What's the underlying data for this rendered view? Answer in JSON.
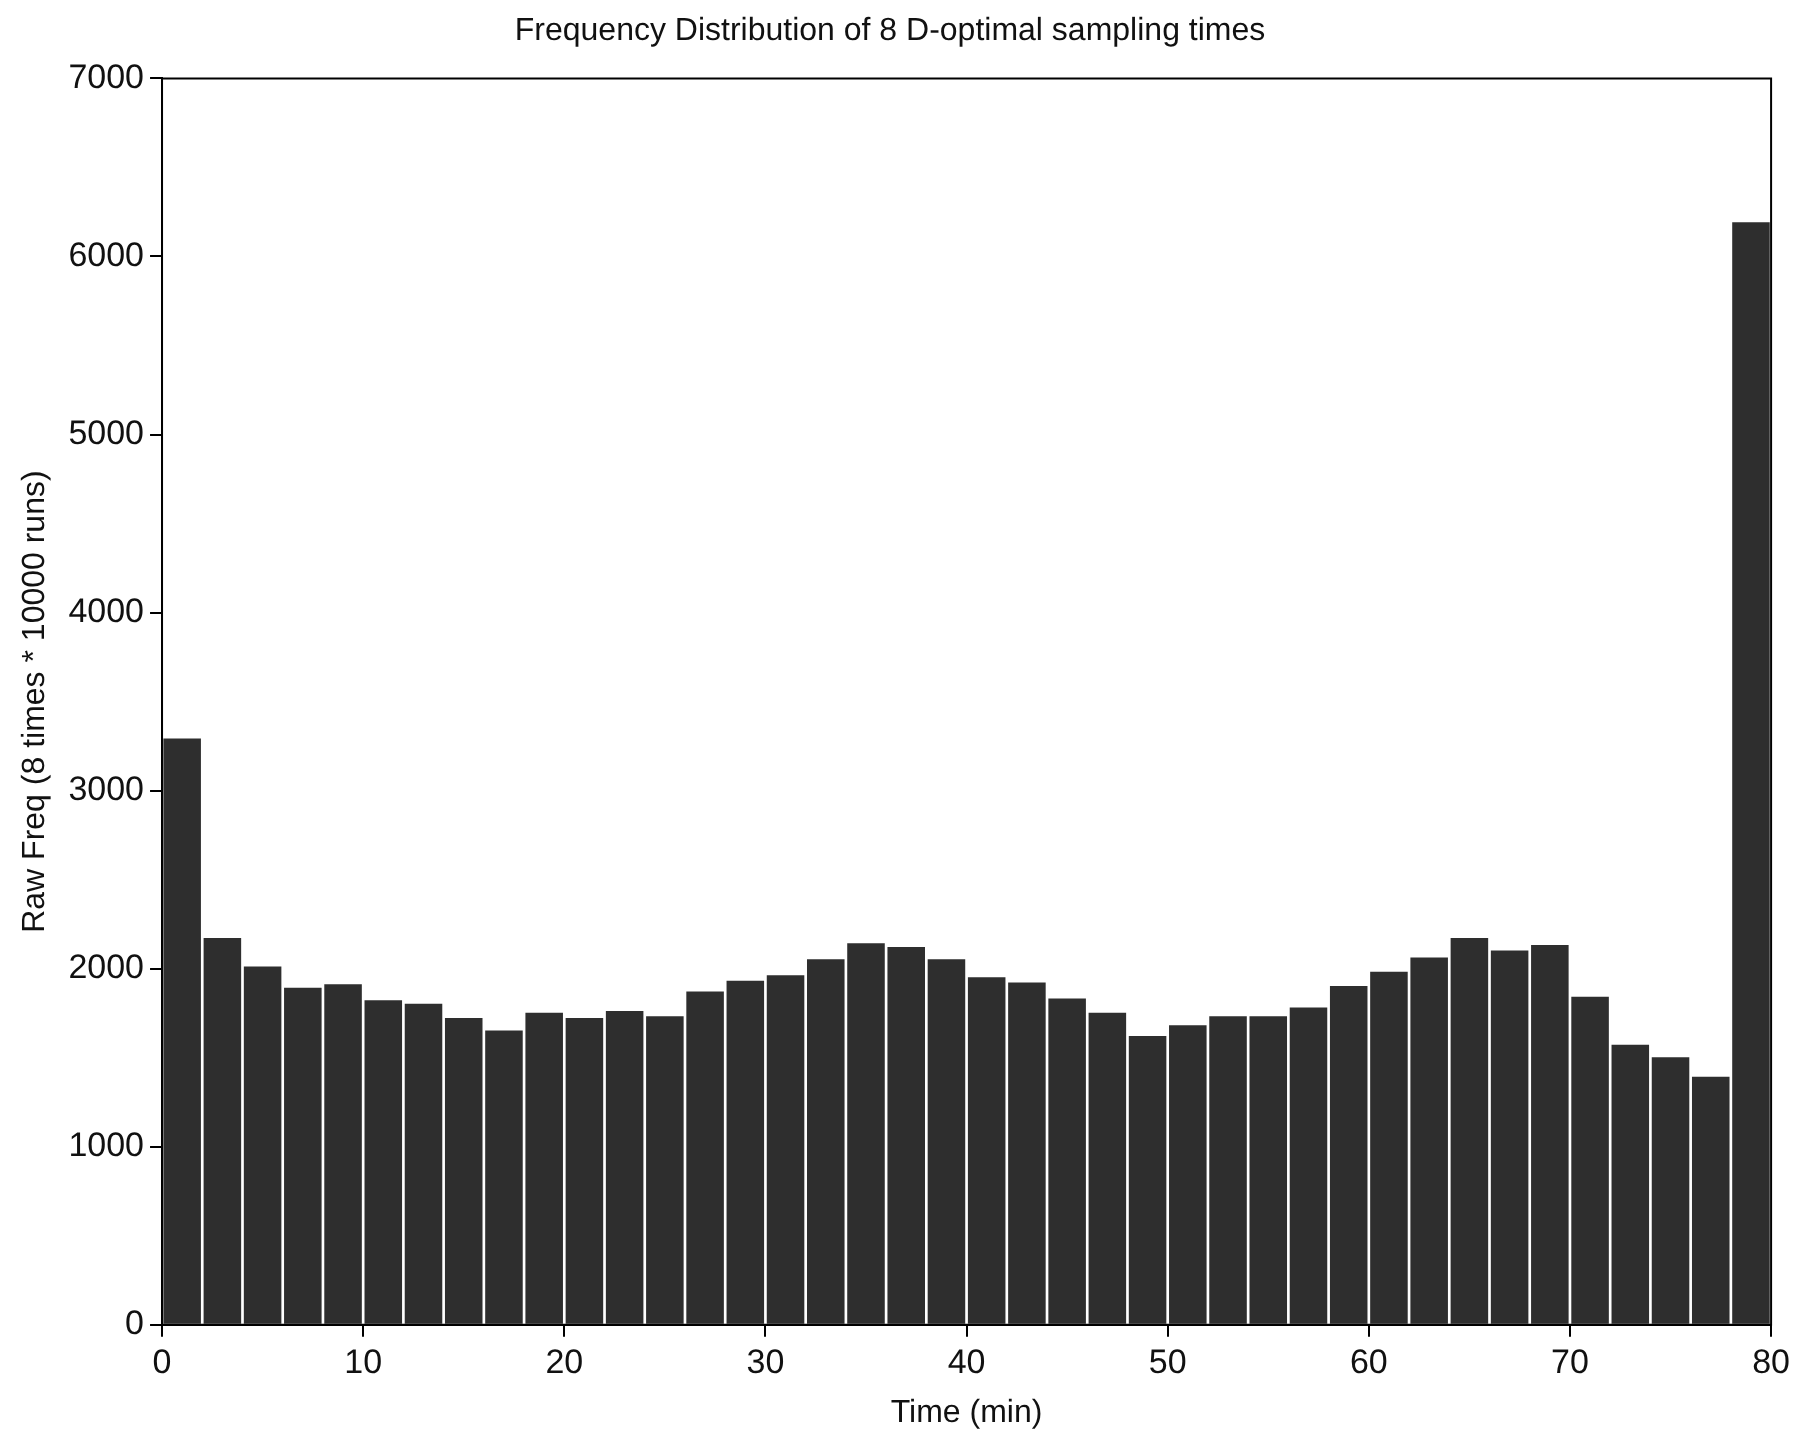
{
  "chart_data": {
    "type": "histogram",
    "title": "Frequency Distribution of 8 D-optimal sampling times",
    "xlabel": "Time (min)",
    "ylabel": "Raw Freq (8 times * 10000 runs)",
    "bins": [
      0,
      2,
      4,
      6,
      8,
      10,
      12,
      14,
      16,
      18,
      20,
      22,
      24,
      26,
      28,
      30,
      32,
      34,
      36,
      38,
      40,
      42,
      44,
      46,
      48,
      50,
      52,
      54,
      56,
      58,
      60,
      62,
      64,
      66,
      68,
      70,
      72,
      74,
      76,
      78,
      80
    ],
    "values": [
      3300,
      2180,
      2020,
      1900,
      1920,
      1830,
      1810,
      1730,
      1660,
      1760,
      1730,
      1770,
      1740,
      1880,
      1940,
      1970,
      2060,
      2150,
      2130,
      2060,
      1960,
      1930,
      1840,
      1760,
      1630,
      1690,
      1740,
      1740,
      1790,
      1910,
      1990,
      2070,
      2180,
      2110,
      2140,
      1850,
      1580,
      1510,
      1400,
      6200
    ],
    "color": "#2e2e2e",
    "xlim": [
      0,
      80
    ],
    "xticks": [
      0,
      10,
      20,
      30,
      40,
      50,
      60,
      70,
      80
    ],
    "ylim": [
      0,
      7000
    ],
    "yticks": [
      0,
      1000,
      2000,
      3000,
      4000,
      5000,
      6000,
      7000
    ],
    "grid": false,
    "legend": false
  }
}
